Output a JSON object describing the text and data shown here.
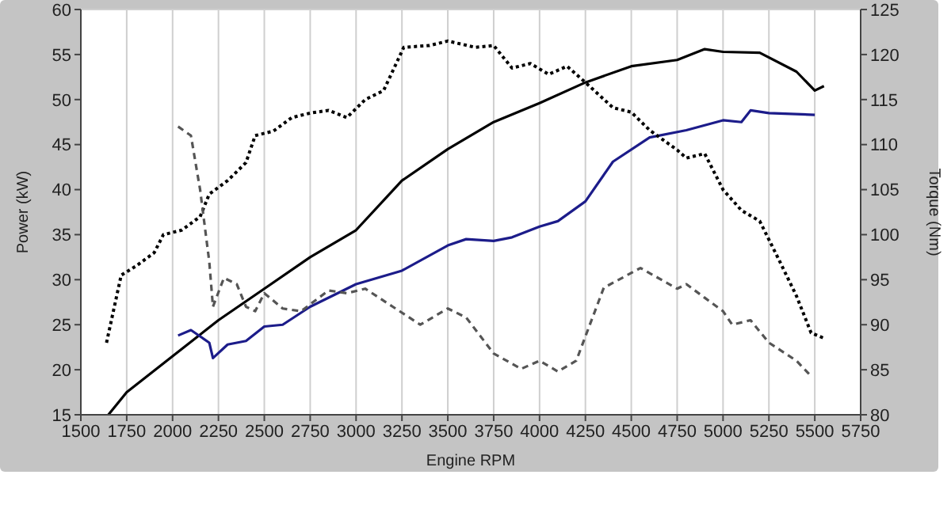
{
  "chart_data": {
    "type": "line",
    "xlabel": "Engine RPM",
    "ylabel": "Power (kW)",
    "y2label": "Torque (Nm)",
    "xlim": [
      1500,
      5750
    ],
    "xticks": [
      1500,
      1750,
      2000,
      2250,
      2500,
      2750,
      3000,
      3250,
      3500,
      3750,
      4000,
      4250,
      4500,
      4750,
      5000,
      5250,
      5500,
      5750
    ],
    "ylim": [
      15,
      60
    ],
    "yticks": [
      15,
      20,
      25,
      30,
      35,
      40,
      45,
      50,
      55,
      60
    ],
    "y2lim": [
      80,
      125
    ],
    "y2ticks": [
      80,
      85,
      90,
      95,
      100,
      105,
      110,
      115,
      120,
      125
    ],
    "grid": true,
    "legend": false,
    "marker": "none",
    "series": [
      {
        "color": "#000000",
        "line_style": "solid",
        "x": [
          1650,
          1750,
          2000,
          2250,
          2500,
          2750,
          3000,
          3250,
          3500,
          3750,
          4000,
          4250,
          4500,
          4750,
          4900,
          5000,
          5200,
          5400,
          5500,
          5550
        ],
        "values": [
          15,
          17.5,
          21.5,
          25.5,
          29,
          32.5,
          35.5,
          41,
          44.5,
          47.5,
          49.6,
          51.9,
          53.7,
          54.4,
          55.6,
          55.3,
          55.2,
          53.1,
          51,
          51.5
        ]
      },
      {
        "color": "#1c1c8a",
        "line_style": "solid",
        "x": [
          2030,
          2100,
          2200,
          2220,
          2300,
          2400,
          2500,
          2600,
          2750,
          3000,
          3250,
          3500,
          3600,
          3750,
          3850,
          4000,
          4100,
          4250,
          4400,
          4600,
          4800,
          5000,
          5100,
          5150,
          5250,
          5500
        ],
        "values": [
          23.8,
          24.4,
          23,
          21.3,
          22.8,
          23.2,
          24.8,
          25,
          27,
          29.5,
          31,
          33.8,
          34.5,
          34.3,
          34.7,
          35.9,
          36.5,
          38.7,
          43.1,
          45.8,
          46.6,
          47.7,
          47.5,
          48.8,
          48.5,
          48.3
        ]
      },
      {
        "color": "#000000",
        "line_style": "dotted",
        "axis": "y2",
        "x": [
          1640,
          1720,
          1800,
          1900,
          1950,
          2050,
          2150,
          2200,
          2300,
          2400,
          2450,
          2550,
          2650,
          2750,
          2850,
          2950,
          3050,
          3150,
          3260,
          3400,
          3500,
          3650,
          3750,
          3850,
          3950,
          4050,
          4150,
          4250,
          4400,
          4500,
          4600,
          4750,
          4800,
          4900,
          5000,
          5100,
          5200,
          5300,
          5400,
          5480,
          5550
        ],
        "values": [
          88,
          95.5,
          96.5,
          98,
          100,
          100.5,
          102,
          104.5,
          106,
          108,
          111,
          111.5,
          113,
          113.5,
          113.8,
          113,
          115,
          116,
          120.8,
          121,
          121.5,
          120.8,
          121,
          118.5,
          119,
          117.8,
          118.7,
          116.9,
          114.1,
          113.6,
          111.6,
          109.4,
          108.5,
          109,
          105,
          102.7,
          101.5,
          97.4,
          93.2,
          89.1,
          88.5
        ]
      },
      {
        "color": "#555555",
        "line_style": "dashed",
        "axis": "y2",
        "x": [
          2030,
          2100,
          2150,
          2200,
          2220,
          2280,
          2350,
          2400,
          2450,
          2500,
          2600,
          2700,
          2850,
          2950,
          3050,
          3200,
          3350,
          3500,
          3600,
          3750,
          3900,
          4000,
          4100,
          4200,
          4350,
          4550,
          4750,
          4800,
          4900,
          5000,
          5050,
          5150,
          5250,
          5400,
          5470
        ],
        "values": [
          112,
          111,
          105,
          97,
          92,
          95.2,
          94.5,
          92,
          91.5,
          93.5,
          91.8,
          91.5,
          93.8,
          93.5,
          94,
          92,
          90,
          91.8,
          90.8,
          86.8,
          85.1,
          86,
          84.8,
          86,
          94.1,
          96.3,
          94,
          94.5,
          93,
          91.5,
          90,
          90.5,
          88,
          86,
          84.5
        ]
      }
    ]
  }
}
